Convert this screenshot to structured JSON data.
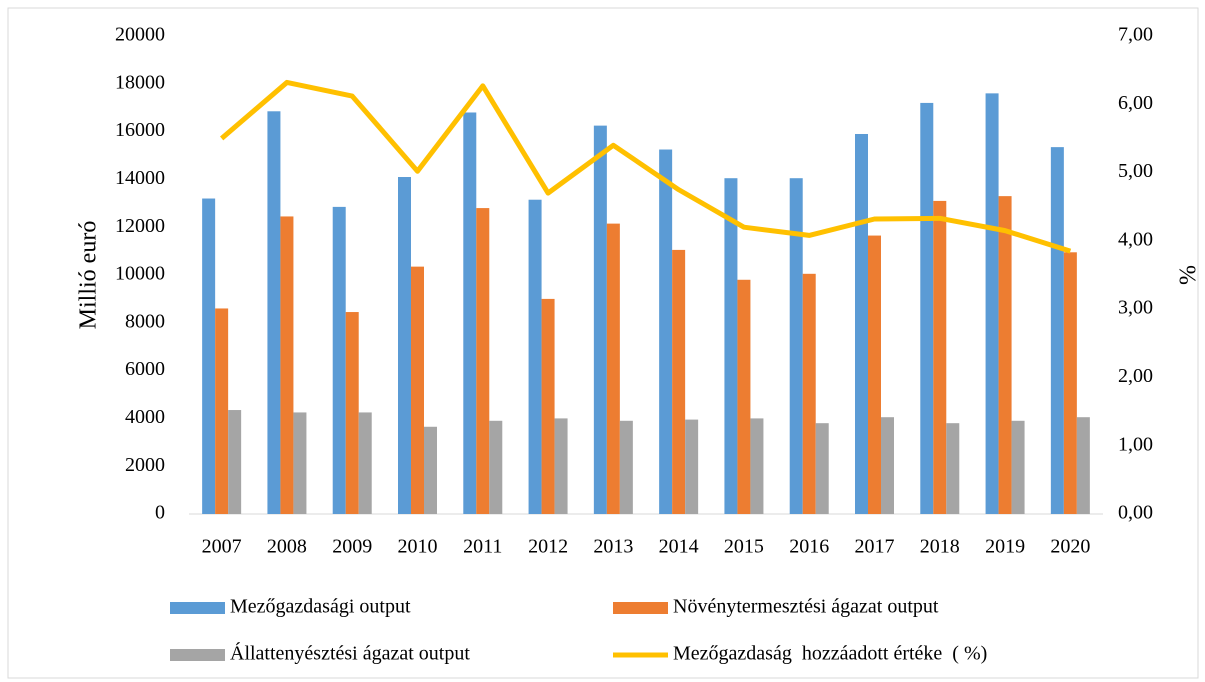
{
  "chart_data": {
    "type": "bar_line",
    "y_label": "Millió euró",
    "y2_label": "%",
    "categories": [
      "2007",
      "2008",
      "2009",
      "2010",
      "2011",
      "2012",
      "2013",
      "2014",
      "2015",
      "2016",
      "2017",
      "2018",
      "2019",
      "2020"
    ],
    "series": [
      {
        "name": "Mezőgazdasági output",
        "type": "bar",
        "color": "#5b9bd5",
        "values": [
          13200,
          16850,
          12850,
          14100,
          16800,
          13150,
          16250,
          15250,
          14050,
          14050,
          15900,
          17200,
          17600,
          15350
        ]
      },
      {
        "name": "Növénytermesztési ágazat output",
        "type": "bar",
        "color": "#ed7d31",
        "values": [
          8600,
          12450,
          8450,
          10350,
          12800,
          9000,
          12150,
          11050,
          9800,
          10050,
          11650,
          13100,
          13300,
          10950
        ]
      },
      {
        "name": "Állattenyésztési ágazat output",
        "type": "bar",
        "color": "#a5a5a5",
        "values": [
          4350,
          4250,
          4250,
          3650,
          3900,
          4000,
          3900,
          3950,
          4000,
          3800,
          4050,
          3800,
          3900,
          4050
        ]
      },
      {
        "name": "Mezőgazdaság  hozzáadott értéke  ( %)",
        "type": "line",
        "axis": "y2",
        "color": "#ffc000",
        "values": [
          5.5,
          6.32,
          6.12,
          5.02,
          6.27,
          4.7,
          5.4,
          4.75,
          4.2,
          4.08,
          4.32,
          4.33,
          4.15,
          3.85
        ]
      }
    ],
    "ylim": [
      0,
      20000
    ],
    "yticks": [
      0,
      2000,
      4000,
      6000,
      8000,
      10000,
      12000,
      14000,
      16000,
      18000,
      20000
    ],
    "y2lim": [
      0,
      7
    ],
    "y2ticks": [
      {
        "value": 0,
        "label": "0,00"
      },
      {
        "value": 1,
        "label": "1,00"
      },
      {
        "value": 2,
        "label": "2,00"
      },
      {
        "value": 3,
        "label": "3,00"
      },
      {
        "value": 4,
        "label": "4,00"
      },
      {
        "value": 5,
        "label": "5,00"
      },
      {
        "value": 6,
        "label": "6,00"
      },
      {
        "value": 7,
        "label": "7,00"
      }
    ],
    "grid": false,
    "legend": "bottom"
  }
}
